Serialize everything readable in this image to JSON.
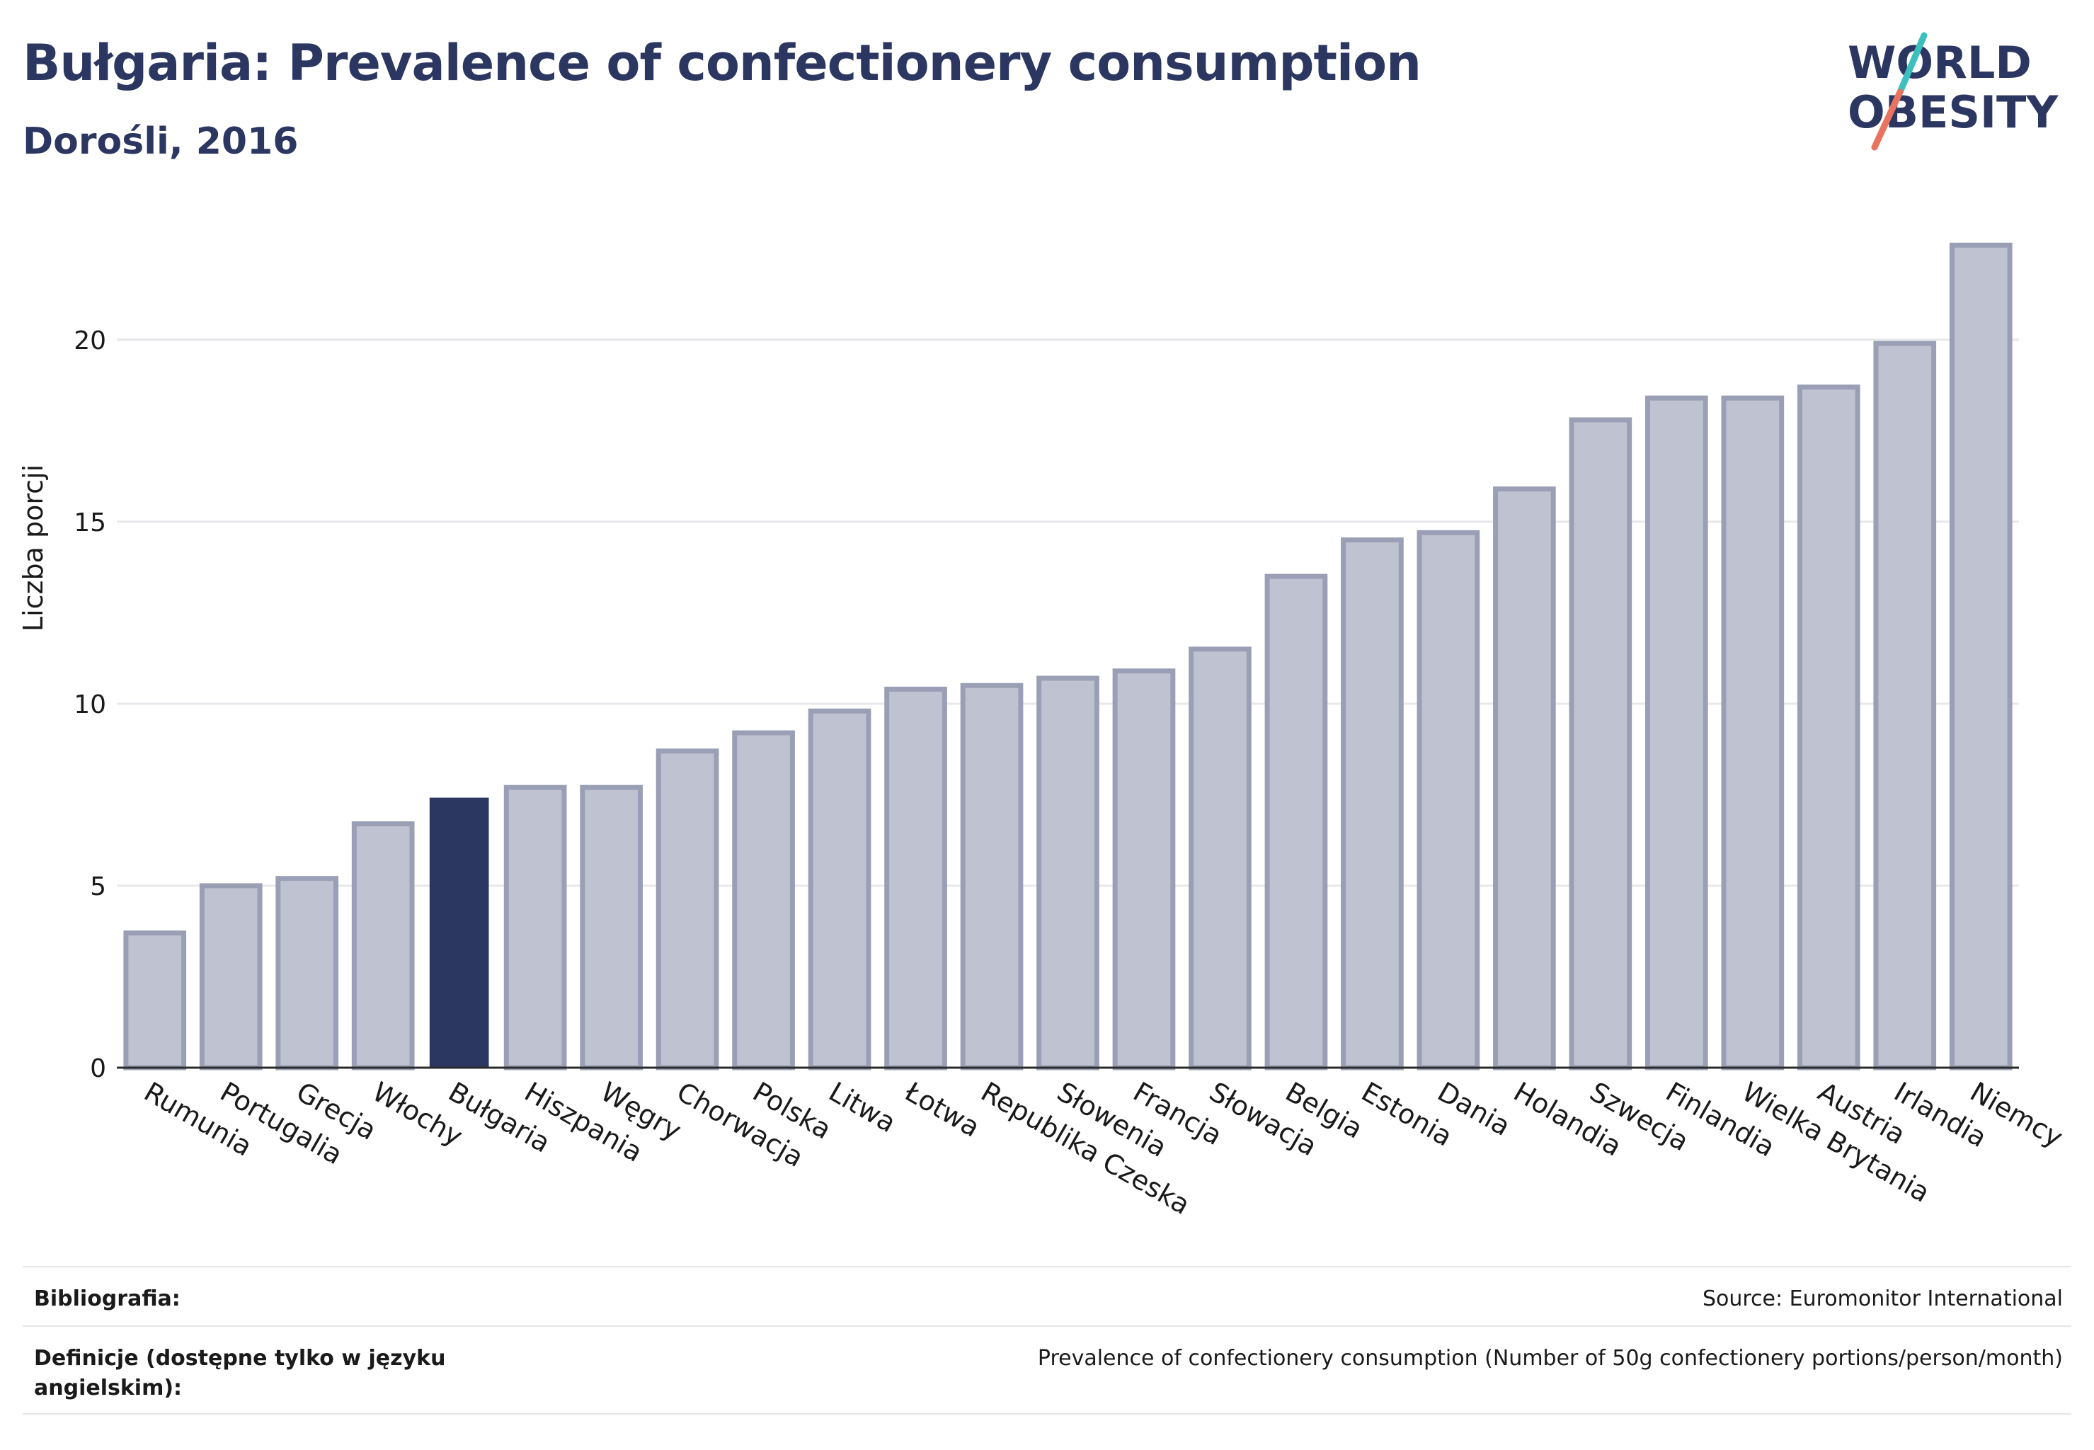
{
  "header": {
    "title": "Bułgaria: Prevalence of confectionery consumption",
    "subtitle": "Dorośli, 2016"
  },
  "logo": {
    "line1": "WORLD",
    "line2": "OBESITY",
    "colors": {
      "text": "#2b3661",
      "slash_teal": "#3bbfbf",
      "slash_coral": "#e8735f"
    }
  },
  "colors": {
    "bar": "#bfc2d0",
    "bar_border": "#9a9fb5",
    "highlight": "#2b3661",
    "grid": "#e8e8ec",
    "axis": "#2b2b2b",
    "text": "#1a1a1a"
  },
  "chart_data": {
    "type": "bar",
    "title": "Bułgaria: Prevalence of confectionery consumption",
    "subtitle": "Dorośli, 2016",
    "xlabel": "",
    "ylabel": "Liczba porcji",
    "ylim": [
      0,
      23.5
    ],
    "yticks": [
      0,
      5,
      10,
      15,
      20
    ],
    "grid": true,
    "highlight": "Bułgaria",
    "categories": [
      "Rumunia",
      "Portugalia",
      "Grecja",
      "Włochy",
      "Bułgaria",
      "Hiszpania",
      "Węgry",
      "Chorwacja",
      "Polska",
      "Litwa",
      "Łotwa",
      "Republika Czeska",
      "Słowenia",
      "Francja",
      "Słowacja",
      "Belgia",
      "Estonia",
      "Dania",
      "Holandia",
      "Szwecja",
      "Finlandia",
      "Wielka Brytania",
      "Austria",
      "Irlandia",
      "Niemcy"
    ],
    "values": [
      3.7,
      5.0,
      5.2,
      6.7,
      7.4,
      7.7,
      7.7,
      8.7,
      9.2,
      9.8,
      10.4,
      10.5,
      10.7,
      10.9,
      11.5,
      13.5,
      14.5,
      14.7,
      15.9,
      17.8,
      18.4,
      18.4,
      18.7,
      19.9,
      22.6
    ]
  },
  "footer": {
    "bibliography_label": "Bibliografia:",
    "bibliography_value": "Source: Euromonitor International",
    "definitions_label": "Definicje (dostępne tylko w języku angielskim):",
    "definitions_value": "Prevalence of confectionery consumption (Number of 50g confectionery portions/person/month)"
  }
}
